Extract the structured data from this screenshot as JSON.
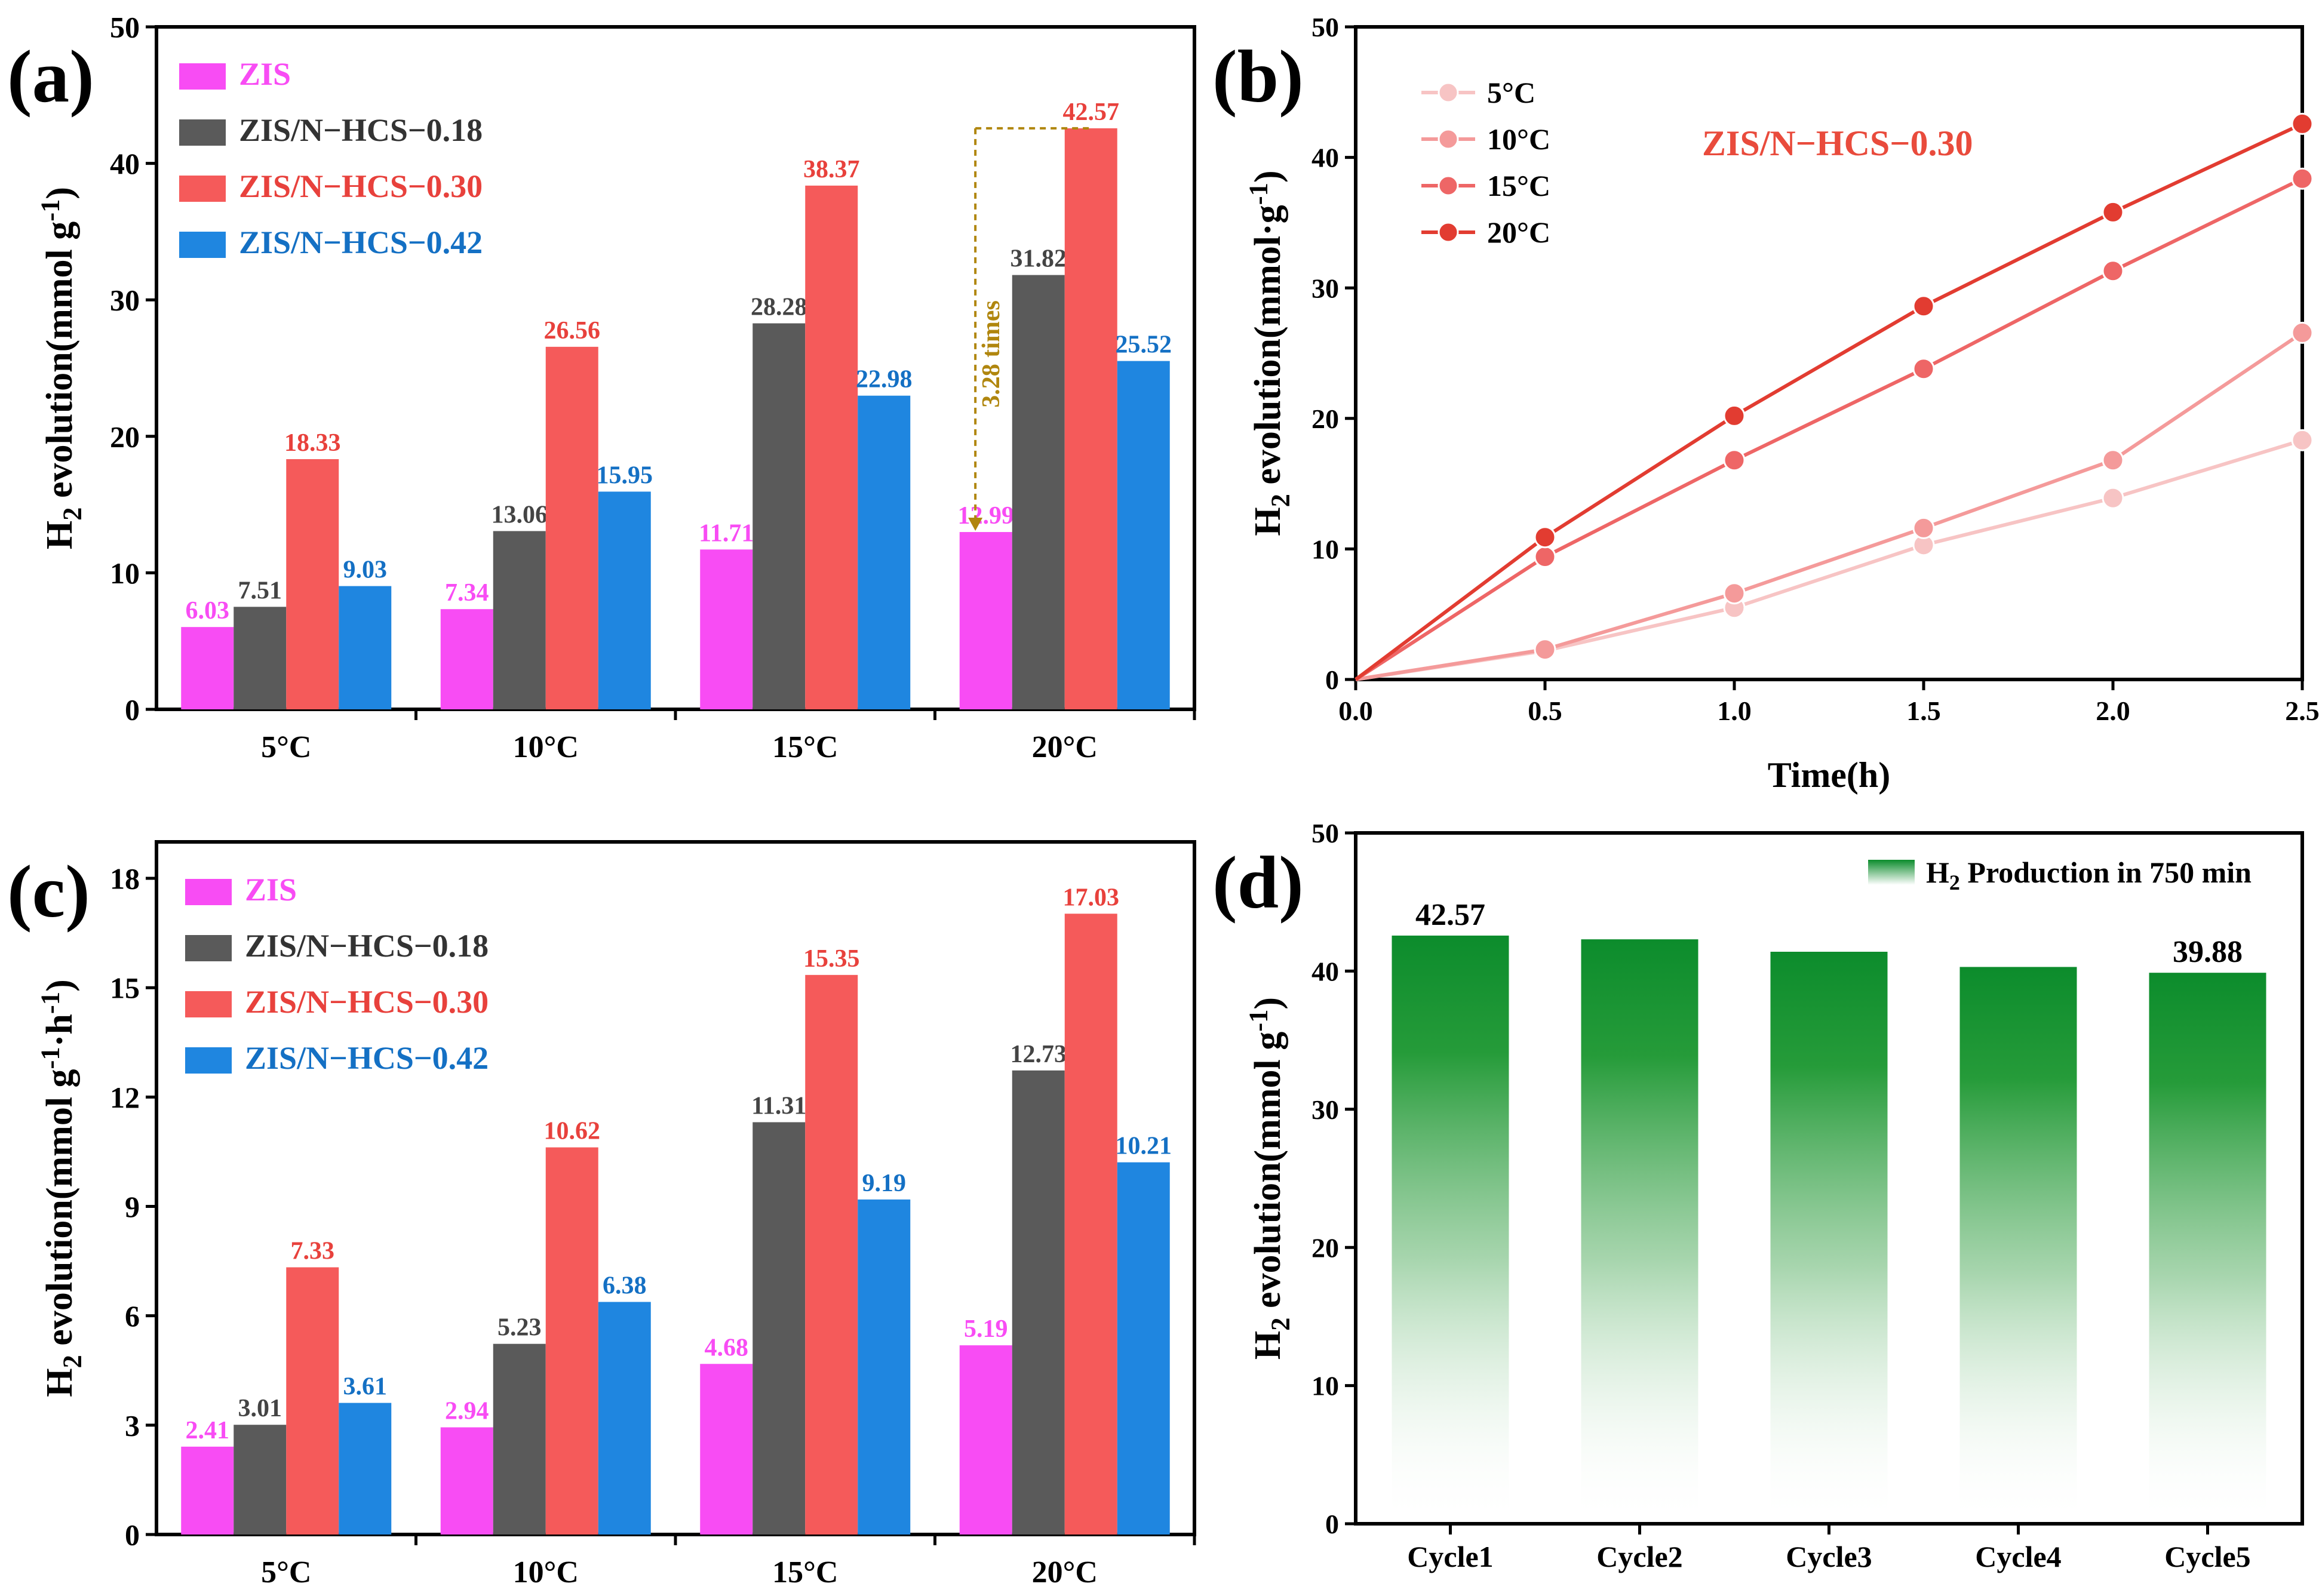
{
  "colors": {
    "zis": "#f84cf4",
    "hcs018": "#5a5a5a",
    "hcs030": "#f55a5a",
    "hcs042": "#1f86e0",
    "arrow": "#b0860e",
    "green": "#0c8c2c",
    "b_5": "#f7c4c4",
    "b_10": "#f49a9a",
    "b_15": "#ee6666",
    "b_20": "#e23c31",
    "title_b": "#e94b3c"
  },
  "chart_data": [
    {
      "panel": "(a)",
      "type": "bar",
      "categories": [
        "5°C",
        "10°C",
        "15°C",
        "20°C"
      ],
      "ylabel_main": "H",
      "ylabel_sub": "2",
      "ylabel_rest": " evolution(mmol g",
      "ylabel_sup": "-1",
      "ylabel_end": ")",
      "ylim": [
        0,
        50
      ],
      "yticks": [
        "0",
        "10",
        "20",
        "30",
        "40",
        "50"
      ],
      "series": [
        {
          "name": "ZIS",
          "values": [
            6.03,
            7.34,
            11.71,
            12.99
          ],
          "labels": [
            "6.03",
            "7.34",
            "11.71",
            "12.99"
          ]
        },
        {
          "name": "ZIS/N−HCS−0.18",
          "values": [
            7.51,
            13.06,
            28.28,
            31.82
          ],
          "labels": [
            "7.51",
            "13.06",
            "28.28",
            "31.82"
          ]
        },
        {
          "name": "ZIS/N−HCS−0.30",
          "values": [
            18.33,
            26.56,
            38.37,
            42.57
          ],
          "labels": [
            "18.33",
            "26.56",
            "38.37",
            "42.57"
          ]
        },
        {
          "name": "ZIS/N−HCS−0.42",
          "values": [
            9.03,
            15.95,
            22.98,
            25.52
          ],
          "labels": [
            "9.03",
            "15.95",
            "22.98",
            "25.52"
          ]
        }
      ],
      "annotation": {
        "text": "3.28 times",
        "from": 12.99,
        "to": 42.57,
        "category": "20°C"
      }
    },
    {
      "panel": "(b)",
      "type": "line",
      "title": "ZIS/N−HCS−0.30",
      "xlabel": "Time(h)",
      "ylabel_main": "H",
      "ylabel_sub": "2",
      "ylabel_rest": " evolution(mmol·g",
      "ylabel_sup": "-1",
      "ylabel_end": ")",
      "xlim": [
        0,
        2.5
      ],
      "ylim": [
        0,
        50
      ],
      "xticks": [
        "0.0",
        "0.5",
        "1.0",
        "1.5",
        "2.0",
        "2.5"
      ],
      "yticks": [
        "0",
        "10",
        "20",
        "30",
        "40",
        "50"
      ],
      "x": [
        0,
        0.5,
        1.0,
        1.5,
        2.0,
        2.5
      ],
      "series": [
        {
          "name": "5°C",
          "values": [
            0,
            2.2,
            5.5,
            10.3,
            13.9,
            18.33
          ]
        },
        {
          "name": "10°C",
          "values": [
            0,
            2.3,
            6.6,
            11.6,
            16.8,
            26.56
          ]
        },
        {
          "name": "15°C",
          "values": [
            0,
            9.4,
            16.8,
            23.8,
            31.3,
            38.37
          ]
        },
        {
          "name": "20°C",
          "values": [
            0,
            10.9,
            20.2,
            28.6,
            35.8,
            42.57
          ]
        }
      ]
    },
    {
      "panel": "(c)",
      "type": "bar",
      "categories": [
        "5°C",
        "10°C",
        "15°C",
        "20°C"
      ],
      "ylabel_main": "H",
      "ylabel_sub": "2",
      "ylabel_rest": " evolution(mmol g",
      "ylabel_sup": "-1",
      "ylabel_mid": "·h",
      "ylabel_sup2": "-1",
      "ylabel_end": ")",
      "ylim": [
        0,
        19
      ],
      "yticks": [
        "0",
        "3",
        "6",
        "9",
        "12",
        "15",
        "18"
      ],
      "series": [
        {
          "name": "ZIS",
          "values": [
            2.41,
            2.94,
            4.68,
            5.19
          ],
          "labels": [
            "2.41",
            "2.94",
            "4.68",
            "5.19"
          ]
        },
        {
          "name": "ZIS/N−HCS−0.18",
          "values": [
            3.01,
            5.23,
            11.31,
            12.73
          ],
          "labels": [
            "3.01",
            "5.23",
            "11.31",
            "12.73"
          ]
        },
        {
          "name": "ZIS/N−HCS−0.30",
          "values": [
            7.33,
            10.62,
            15.35,
            17.03
          ],
          "labels": [
            "7.33",
            "10.62",
            "15.35",
            "17.03"
          ]
        },
        {
          "name": "ZIS/N−HCS−0.42",
          "values": [
            3.61,
            6.38,
            9.19,
            10.21
          ],
          "labels": [
            "3.61",
            "6.38",
            "9.19",
            "10.21"
          ]
        }
      ]
    },
    {
      "panel": "(d)",
      "type": "bar",
      "categories": [
        "Cycle1",
        "Cycle2",
        "Cycle3",
        "Cycle4",
        "Cycle5"
      ],
      "values": [
        42.57,
        42.3,
        41.4,
        40.3,
        39.88
      ],
      "labels": [
        "42.57",
        "",
        "",
        "",
        "39.88"
      ],
      "ylabel_main": "H",
      "ylabel_sub": "2",
      "ylabel_rest": " evolution(mmol g",
      "ylabel_sup": "-1",
      "ylabel_end": ")",
      "ylim": [
        0,
        50
      ],
      "yticks": [
        "0",
        "10",
        "20",
        "30",
        "40",
        "50"
      ],
      "legend_main": "H",
      "legend_sub": "2",
      "legend_rest": " Production in 750 min"
    }
  ]
}
